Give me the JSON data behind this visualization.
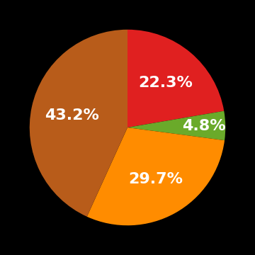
{
  "values": [
    22.3,
    4.8,
    29.7,
    43.2
  ],
  "colors": [
    "#e02020",
    "#6aaa2a",
    "#ff8c00",
    "#b85c1a"
  ],
  "labels": [
    "22.3%",
    "4.8%",
    "29.7%",
    "43.2%"
  ],
  "background_color": "#000000",
  "text_color": "#ffffff",
  "text_fontsize": 16,
  "startangle": 90,
  "label_radii": [
    0.6,
    0.78,
    0.6,
    0.58
  ]
}
